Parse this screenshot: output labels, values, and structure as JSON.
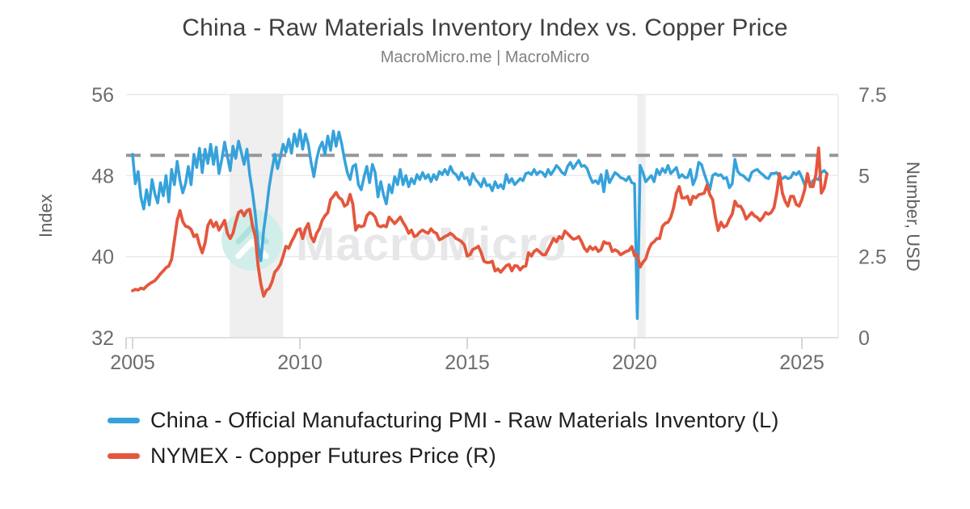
{
  "chart_data": {
    "type": "line",
    "title": "China - Raw Materials Inventory Index vs. Copper Price",
    "subtitle": "MacroMicro.me | MacroMicro",
    "watermark": "MacroMicro",
    "grid": true,
    "legend_position": "bottom-left",
    "x_axis": {
      "ticks": [
        "2005",
        "2010",
        "2015",
        "2020",
        "2025"
      ],
      "range": [
        2004.8,
        2026.1
      ]
    },
    "y_left": {
      "label": "Index",
      "ticks": [
        "56",
        "48",
        "40",
        "32"
      ],
      "range": [
        32,
        56
      ]
    },
    "y_right": {
      "label": "Number, USD",
      "ticks": [
        "7.5",
        "5",
        "2.5",
        "0"
      ],
      "range": [
        0,
        7.5
      ]
    },
    "threshold_line": {
      "axis": "left",
      "value": 50,
      "style": "dashed",
      "color": "#97979A"
    },
    "shaded_periods": [
      {
        "from": 2007.9,
        "to": 2009.5
      },
      {
        "from": 2020.08,
        "to": 2020.33
      }
    ],
    "series": [
      {
        "name": "China - Official Manufacturing PMI - Raw Materials Inventory (L)",
        "axis": "left",
        "color": "#36A2DB",
        "start_year": 2005,
        "points_per_year": 12,
        "values": [
          50.1,
          47.2,
          48.4,
          45.9,
          44.7,
          46.6,
          45.1,
          47.6,
          46.2,
          45.3,
          47.3,
          46.0,
          48.0,
          45.4,
          48.6,
          47.1,
          49.4,
          47.5,
          46.3,
          47.2,
          48.9,
          47.1,
          50.1,
          48.8,
          50.7,
          48.3,
          50.6,
          49.2,
          51.1,
          49.1,
          50.8,
          48.2,
          49.6,
          51.3,
          49.9,
          48.5,
          50.9,
          49.7,
          51.4,
          50.3,
          49.1,
          50.6,
          48.1,
          46.4,
          44.2,
          41.2,
          39.6,
          42.6,
          44.6,
          46.9,
          48.6,
          50.1,
          48.7,
          49.9,
          51.1,
          50.3,
          51.6,
          50.2,
          52.1,
          50.9,
          52.5,
          50.6,
          52.1,
          51.1,
          49.3,
          47.9,
          49.6,
          50.7,
          51.3,
          50.1,
          51.9,
          50.5,
          52.4,
          50.9,
          52.3,
          51.1,
          49.6,
          48.3,
          47.6,
          48.9,
          49.1,
          47.1,
          46.6,
          47.9,
          48.9,
          47.3,
          49.1,
          48.3,
          45.9,
          47.4,
          46.1,
          45.2,
          47.1,
          46.3,
          47.9,
          47.1,
          48.6,
          47.1,
          48.0,
          46.9,
          47.7,
          47.2,
          48.1,
          47.6,
          48.3,
          47.7,
          48.1,
          47.4,
          48.1,
          47.6,
          48.4,
          48.1,
          48.6,
          48.1,
          48.9,
          48.3,
          48.1,
          47.6,
          48.3,
          47.7,
          47.8,
          47.1,
          48.2,
          47.6,
          47.3,
          46.9,
          47.7,
          47.0,
          47.1,
          46.5,
          47.4,
          46.8,
          47.1,
          46.7,
          48.1,
          47.3,
          47.7,
          47.1,
          47.4,
          47.7,
          47.5,
          48.2,
          48.3,
          48.1,
          48.6,
          48.1,
          48.4,
          48.3,
          47.9,
          48.6,
          48.1,
          48.5,
          49.0,
          48.7,
          48.3,
          48.1,
          48.9,
          49.3,
          48.7,
          49.1,
          49.5,
          48.9,
          49.0,
          48.7,
          47.9,
          47.3,
          47.5,
          47.2,
          48.1,
          46.4,
          48.5,
          47.3,
          47.8,
          48.3,
          48.1,
          47.8,
          47.7,
          47.5,
          47.9,
          47.3,
          47.2,
          33.9,
          49.0,
          48.3,
          47.4,
          47.7,
          48.0,
          47.4,
          48.6,
          48.1,
          48.7,
          48.3,
          49.0,
          48.2,
          48.5,
          48.8,
          47.8,
          48.1,
          47.8,
          47.8,
          48.6,
          47.1,
          47.8,
          49.3,
          49.1,
          48.2,
          47.4,
          46.6,
          48.0,
          48.2,
          48.0,
          48.1,
          47.7,
          47.8,
          46.8,
          47.2,
          49.6,
          48.4,
          48.1,
          48.0,
          47.7,
          47.5,
          48.3,
          48.5,
          48.6,
          48.3,
          48.1,
          47.8,
          47.7,
          48.2,
          48.2,
          48.3,
          47.9,
          47.7,
          47.9,
          47.7,
          47.8,
          48.3,
          48.1,
          48.4,
          47.8,
          47.1,
          47.6,
          47.1,
          47.5,
          47.7,
          47.6,
          48.3,
          48.5,
          48.2
        ]
      },
      {
        "name": "NYMEX - Copper Futures Price (R)",
        "axis": "right",
        "color": "#E4573D",
        "start_year": 2005,
        "points_per_year": 12,
        "values": [
          1.45,
          1.49,
          1.47,
          1.53,
          1.5,
          1.59,
          1.66,
          1.71,
          1.76,
          1.86,
          1.97,
          2.06,
          2.16,
          2.21,
          2.42,
          3.02,
          3.62,
          3.92,
          3.58,
          3.44,
          3.41,
          3.34,
          3.12,
          3.18,
          2.86,
          2.62,
          2.92,
          3.46,
          3.62,
          3.42,
          3.56,
          3.32,
          3.46,
          3.62,
          3.22,
          3.06,
          3.22,
          3.56,
          3.86,
          3.92,
          3.76,
          3.92,
          3.96,
          3.46,
          3.12,
          2.22,
          1.66,
          1.28,
          1.46,
          1.52,
          1.72,
          2.02,
          2.12,
          2.26,
          2.52,
          2.82,
          2.76,
          2.96,
          3.12,
          3.32,
          3.36,
          3.06,
          3.36,
          3.52,
          3.12,
          2.96,
          3.22,
          3.36,
          3.62,
          3.76,
          3.86,
          4.26,
          4.36,
          4.48,
          4.32,
          4.26,
          4.06,
          4.12,
          4.42,
          4.12,
          3.32,
          3.46,
          3.42,
          3.46,
          3.76,
          3.86,
          3.82,
          3.72,
          3.46,
          3.42,
          3.46,
          3.42,
          3.72,
          3.62,
          3.52,
          3.62,
          3.72,
          3.56,
          3.42,
          3.22,
          3.32,
          3.12,
          3.16,
          3.26,
          3.32,
          3.26,
          3.22,
          3.36,
          3.26,
          3.22,
          3.02,
          3.06,
          3.12,
          3.16,
          3.22,
          3.16,
          3.06,
          3.02,
          2.96,
          2.86,
          2.52,
          2.56,
          2.72,
          2.76,
          2.82,
          2.62,
          2.36,
          2.32,
          2.32,
          2.36,
          2.06,
          2.12,
          2.02,
          2.12,
          2.22,
          2.26,
          2.06,
          2.22,
          2.21,
          2.09,
          2.19,
          2.21,
          2.62,
          2.52,
          2.66,
          2.72,
          2.64,
          2.56,
          2.56,
          2.72,
          2.89,
          3.06,
          2.96,
          3.12,
          3.06,
          3.29,
          3.21,
          3.12,
          3.04,
          3.06,
          3.12,
          2.96,
          2.76,
          2.66,
          2.81,
          2.72,
          2.79,
          2.66,
          2.72,
          2.96,
          2.91,
          2.91,
          2.66,
          2.71,
          2.66,
          2.56,
          2.61,
          2.66,
          2.69,
          2.81,
          2.53,
          2.56,
          2.18,
          2.33,
          2.43,
          2.71,
          2.89,
          2.96,
          3.06,
          3.06,
          3.43,
          3.53,
          3.56,
          3.71,
          4.01,
          4.46,
          4.66,
          4.31,
          4.31,
          4.36,
          4.11,
          4.36,
          4.31,
          4.41,
          4.43,
          4.46,
          4.71,
          4.41,
          4.26,
          3.71,
          3.31,
          3.56,
          3.41,
          3.46,
          3.66,
          3.81,
          4.21,
          4.06,
          4.06,
          3.91,
          3.66,
          3.76,
          3.86,
          3.76,
          3.71,
          3.61,
          3.71,
          3.86,
          3.81,
          3.86,
          4.01,
          4.46,
          5.06,
          4.46,
          4.21,
          4.06,
          4.36,
          4.36,
          4.11,
          4.06,
          4.26,
          4.56,
          5.06,
          4.66,
          4.66,
          5.02,
          5.85,
          4.46,
          4.62,
          5.05
        ]
      }
    ],
    "colors": {
      "gridline": "#E9E9E9",
      "axis_line": "#D9D9D9",
      "tick_mark": "#CCCCCC",
      "shaded_band": "#EFEFEF",
      "tick_label": "#6D6D6D",
      "watermark_text": "#E7E7EA",
      "watermark_circle": "#D2EEEA",
      "watermark_chevron_top": "#AFE1DB",
      "watermark_chevron_bottom": "#FFFFFF"
    }
  }
}
